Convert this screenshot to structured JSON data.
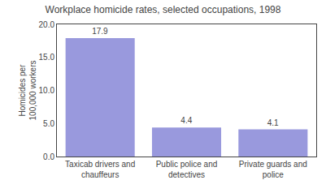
{
  "chart_data": {
    "type": "bar",
    "title": "Workplace homicide rates, selected occupations, 1998",
    "categories": [
      "Taxicab drivers and\nchauffeurs",
      "Public police and\ndetectives",
      "Private guards and\npolice"
    ],
    "values": [
      17.9,
      4.4,
      4.1
    ],
    "color": "#9999dd",
    "ylabel": "Homicides per\n100,000 workers",
    "ylim": [
      0,
      20.0
    ],
    "yticks": [
      {
        "value": 0,
        "label": "0.0"
      },
      {
        "value": 5,
        "label": "5.0"
      },
      {
        "value": 10,
        "label": "10.0"
      },
      {
        "value": 15,
        "label": "15.0"
      },
      {
        "value": 20,
        "label": "20.0"
      }
    ],
    "data_labels": true,
    "grid": false
  }
}
